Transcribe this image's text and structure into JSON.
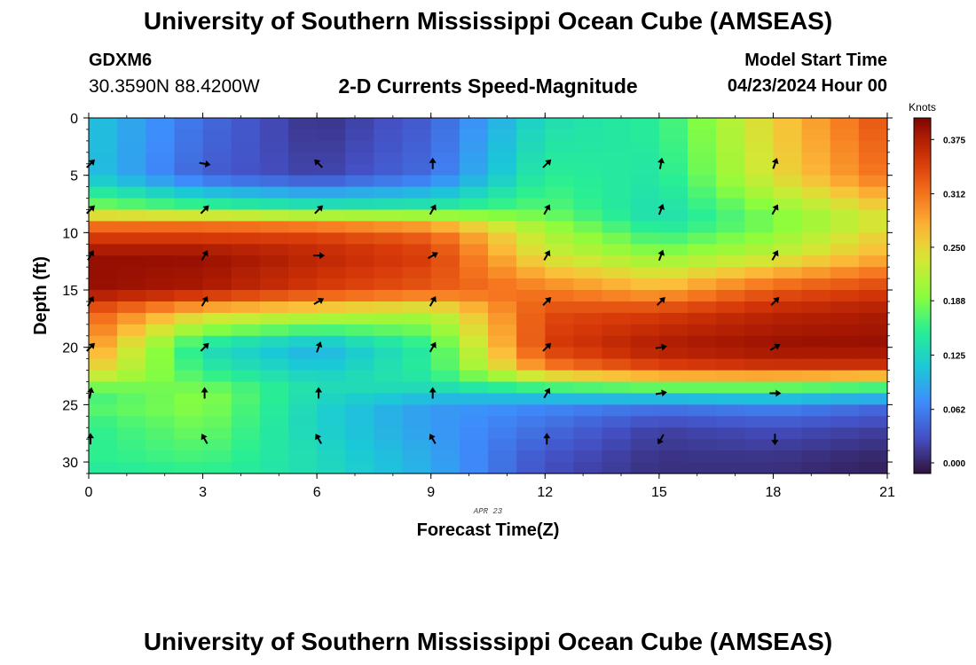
{
  "header": {
    "title": "University of Southern Mississippi Ocean Cube (AMSEAS)",
    "station": "GDXM6",
    "coords": "30.3590N  88.4200W",
    "model_start_label": "Model Start Time",
    "model_start_value": "04/23/2024 Hour 00"
  },
  "footer": {
    "title": "University of Southern Mississippi Ocean Cube (AMSEAS)"
  },
  "chart_data": {
    "type": "heatmap",
    "title": "2-D Currents Speed-Magnitude",
    "xlabel": "Forecast Time(Z)",
    "ylabel": "Depth (ft)",
    "date_label": "APR 23",
    "xlim": [
      0,
      21
    ],
    "ylim": [
      0,
      31
    ],
    "xticks": [
      0,
      3,
      6,
      9,
      12,
      15,
      18,
      21
    ],
    "yticks": [
      0,
      5,
      10,
      15,
      20,
      25,
      30
    ],
    "colorbar": {
      "label": "Knots",
      "min": 0.0,
      "max": 0.4,
      "ticks": [
        "0.000",
        "0.062",
        "0.125",
        "0.188",
        "0.250",
        "0.312",
        "0.375"
      ]
    },
    "grid": {
      "time_step_hours": 0.75,
      "depth_step_ft": 1
    },
    "speed_profiles": [
      {
        "time": 0,
        "depths": [
          0,
          5,
          8,
          9,
          10,
          12,
          15,
          17,
          20,
          22,
          23,
          24,
          25,
          27,
          30,
          31
        ],
        "speeds": [
          0.12,
          0.12,
          0.2,
          0.3,
          0.34,
          0.39,
          0.39,
          0.33,
          0.3,
          0.26,
          0.22,
          0.16,
          0.18,
          0.16,
          0.16,
          0.15
        ]
      },
      {
        "time": 3,
        "depths": [
          0,
          5,
          8,
          9,
          10,
          12,
          15,
          17,
          20,
          22,
          23,
          24,
          25,
          27,
          30,
          31
        ],
        "speeds": [
          0.06,
          0.05,
          0.18,
          0.3,
          0.34,
          0.39,
          0.38,
          0.26,
          0.14,
          0.16,
          0.18,
          0.2,
          0.2,
          0.19,
          0.17,
          0.16
        ]
      },
      {
        "time": 6,
        "depths": [
          0,
          5,
          8,
          9,
          10,
          12,
          15,
          17,
          20,
          22,
          23,
          24,
          25,
          27,
          30,
          31
        ],
        "speeds": [
          0.02,
          0.03,
          0.16,
          0.28,
          0.34,
          0.37,
          0.35,
          0.24,
          0.1,
          0.12,
          0.14,
          0.14,
          0.13,
          0.13,
          0.14,
          0.14
        ]
      },
      {
        "time": 9,
        "depths": [
          0,
          5,
          8,
          9,
          10,
          12,
          15,
          17,
          20,
          22,
          23,
          24,
          25,
          27,
          30,
          31
        ],
        "speeds": [
          0.05,
          0.06,
          0.16,
          0.26,
          0.32,
          0.35,
          0.33,
          0.22,
          0.16,
          0.16,
          0.15,
          0.13,
          0.09,
          0.09,
          0.1,
          0.1
        ]
      },
      {
        "time": 12,
        "depths": [
          0,
          5,
          8,
          9,
          10,
          12,
          15,
          17,
          20,
          22,
          23,
          24,
          25,
          27,
          30,
          31
        ],
        "speeds": [
          0.14,
          0.16,
          0.18,
          0.2,
          0.22,
          0.24,
          0.31,
          0.34,
          0.35,
          0.3,
          0.2,
          0.14,
          0.08,
          0.06,
          0.04,
          0.04
        ]
      },
      {
        "time": 15,
        "depths": [
          0,
          5,
          8,
          9,
          10,
          12,
          15,
          17,
          20,
          22,
          23,
          24,
          25,
          27,
          30,
          31
        ],
        "speeds": [
          0.16,
          0.15,
          0.14,
          0.14,
          0.16,
          0.2,
          0.28,
          0.35,
          0.38,
          0.34,
          0.22,
          0.15,
          0.07,
          0.03,
          0.02,
          0.02
        ]
      },
      {
        "time": 18,
        "depths": [
          0,
          5,
          8,
          9,
          10,
          12,
          15,
          17,
          20,
          22,
          23,
          24,
          25,
          27,
          30,
          31
        ],
        "speeds": [
          0.26,
          0.25,
          0.2,
          0.19,
          0.2,
          0.23,
          0.33,
          0.37,
          0.39,
          0.35,
          0.22,
          0.15,
          0.08,
          0.04,
          0.02,
          0.02
        ]
      },
      {
        "time": 21,
        "depths": [
          0,
          5,
          8,
          9,
          10,
          12,
          15,
          17,
          20,
          22,
          23,
          24,
          25,
          27,
          30,
          31
        ],
        "speeds": [
          0.34,
          0.32,
          0.26,
          0.24,
          0.26,
          0.28,
          0.35,
          0.38,
          0.39,
          0.35,
          0.2,
          0.14,
          0.06,
          0.03,
          0.01,
          0.01
        ]
      }
    ],
    "vector_times": [
      0,
      3,
      6,
      9,
      12,
      15,
      18
    ],
    "vector_depths": [
      4,
      8,
      12,
      16,
      20,
      24,
      28
    ],
    "vector_directions_deg": [
      [
        45,
        100,
        315,
        0,
        45,
        10,
        20
      ],
      [
        45,
        45,
        45,
        30,
        30,
        20,
        30
      ],
      [
        30,
        30,
        90,
        60,
        30,
        20,
        30
      ],
      [
        30,
        30,
        60,
        30,
        45,
        45,
        45
      ],
      [
        45,
        45,
        20,
        30,
        45,
        80,
        60
      ],
      [
        10,
        0,
        0,
        0,
        30,
        80,
        90
      ],
      [
        0,
        330,
        330,
        330,
        0,
        210,
        180
      ]
    ]
  }
}
